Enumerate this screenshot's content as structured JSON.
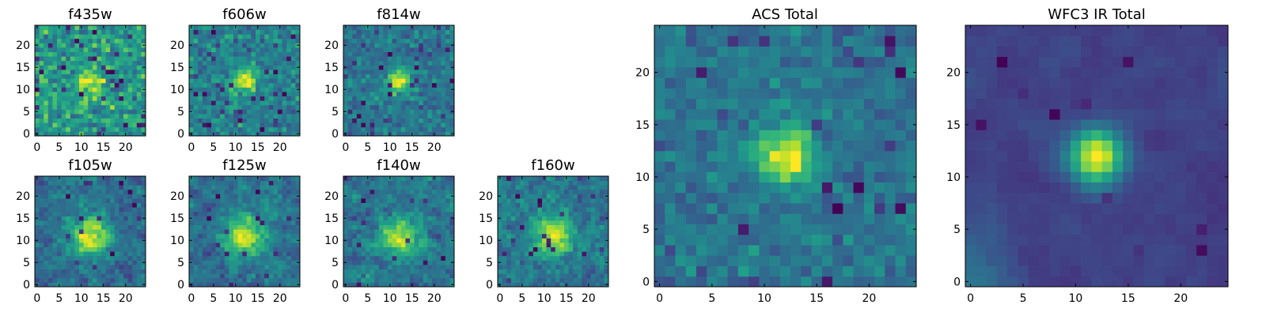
{
  "chart_data": [
    {
      "type": "heatmap",
      "title": "f435w",
      "xlim": [
        0,
        25
      ],
      "ylim": [
        0,
        25
      ],
      "xticks": [
        0,
        5,
        10,
        15,
        20
      ],
      "yticks": [
        0,
        5,
        10,
        15,
        20
      ],
      "seed": 11,
      "noise": 1.0,
      "blob": [
        12,
        12,
        2.2,
        0.5
      ],
      "hole_count": 30,
      "colormap": "viridis"
    },
    {
      "type": "heatmap",
      "title": "f606w",
      "xlim": [
        0,
        25
      ],
      "ylim": [
        0,
        25
      ],
      "xticks": [
        0,
        5,
        10,
        15,
        20
      ],
      "yticks": [
        0,
        5,
        10,
        15,
        20
      ],
      "seed": 23,
      "noise": 1.0,
      "blob": [
        12,
        12,
        2.0,
        0.9
      ],
      "hole_count": 30,
      "colormap": "viridis"
    },
    {
      "type": "heatmap",
      "title": "f814w",
      "xlim": [
        0,
        25
      ],
      "ylim": [
        0,
        25
      ],
      "xticks": [
        0,
        5,
        10,
        15,
        20
      ],
      "yticks": [
        0,
        5,
        10,
        15,
        20
      ],
      "seed": 37,
      "noise": 1.0,
      "blob": [
        12,
        12,
        2.0,
        1.1
      ],
      "hole_count": 30,
      "colormap": "viridis"
    },
    {
      "type": "heatmap",
      "title": "f105w",
      "xlim": [
        0,
        25
      ],
      "ylim": [
        0,
        25
      ],
      "xticks": [
        0,
        5,
        10,
        15,
        20
      ],
      "yticks": [
        0,
        5,
        10,
        15,
        20
      ],
      "seed": 41,
      "noise": 0.7,
      "blob": [
        12,
        11,
        3.0,
        0.6
      ],
      "hole_count": 14,
      "colormap": "viridis"
    },
    {
      "type": "heatmap",
      "title": "f125w",
      "xlim": [
        0,
        25
      ],
      "ylim": [
        0,
        25
      ],
      "xticks": [
        0,
        5,
        10,
        15,
        20
      ],
      "yticks": [
        0,
        5,
        10,
        15,
        20
      ],
      "seed": 53,
      "noise": 0.7,
      "blob": [
        12,
        11,
        3.0,
        0.6
      ],
      "hole_count": 14,
      "colormap": "viridis"
    },
    {
      "type": "heatmap",
      "title": "f140w",
      "xlim": [
        0,
        25
      ],
      "ylim": [
        0,
        25
      ],
      "xticks": [
        0,
        5,
        10,
        15,
        20
      ],
      "yticks": [
        0,
        5,
        10,
        15,
        20
      ],
      "seed": 67,
      "noise": 0.7,
      "blob": [
        12,
        11,
        3.0,
        0.5
      ],
      "hole_count": 14,
      "colormap": "viridis"
    },
    {
      "type": "heatmap",
      "title": "f160w",
      "xlim": [
        0,
        25
      ],
      "ylim": [
        0,
        25
      ],
      "xticks": [
        0,
        5,
        10,
        15,
        20
      ],
      "yticks": [
        0,
        5,
        10,
        15,
        20
      ],
      "seed": 79,
      "noise": 0.7,
      "blob": [
        12,
        11,
        3.0,
        0.5
      ],
      "hole_count": 18,
      "colormap": "viridis"
    },
    {
      "type": "heatmap",
      "title": "ACS Total",
      "xlim": [
        0,
        25
      ],
      "ylim": [
        0,
        25
      ],
      "xticks": [
        0,
        5,
        10,
        15,
        20
      ],
      "yticks": [
        0,
        5,
        10,
        15,
        20
      ],
      "seed": 97,
      "noise": 0.8,
      "blob": [
        12,
        12,
        1.8,
        1.3
      ],
      "hole_count": 16,
      "colormap": "viridis"
    },
    {
      "type": "heatmap",
      "title": "WFC3 IR Total",
      "xlim": [
        0,
        25
      ],
      "ylim": [
        0,
        25
      ],
      "xticks": [
        0,
        5,
        10,
        15,
        20
      ],
      "yticks": [
        0,
        5,
        10,
        15,
        20
      ],
      "seed": 131,
      "noise": 0.45,
      "blob": [
        12,
        12,
        1.8,
        1.4
      ],
      "hole_count": 10,
      "colormap": "viridis"
    }
  ]
}
